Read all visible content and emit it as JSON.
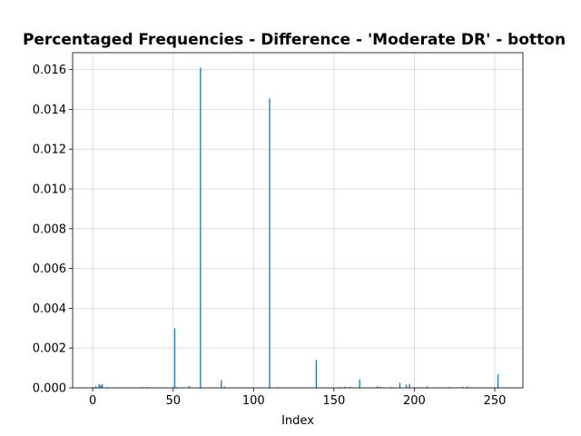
{
  "chart_data": {
    "type": "bar",
    "title": "Percentaged Frequencies - Difference - 'Moderate DR' - botton",
    "xlabel": "Index",
    "ylabel": "",
    "xlim": [
      -12.5,
      267.5
    ],
    "ylim": [
      0,
      0.01685
    ],
    "xticks": [
      0,
      50,
      100,
      150,
      200,
      250
    ],
    "yticks": [
      0.0,
      0.002,
      0.004,
      0.006,
      0.008,
      0.01,
      0.012,
      0.014,
      0.016
    ],
    "ytick_labels": [
      "0.000",
      "0.002",
      "0.004",
      "0.006",
      "0.008",
      "0.010",
      "0.012",
      "0.014",
      "0.016"
    ],
    "grid": true,
    "bar_color": "#1f77b4",
    "x": [
      0,
      2,
      4,
      5,
      6,
      9,
      31,
      34,
      51,
      52,
      60,
      67,
      80,
      82,
      110,
      115,
      139,
      154,
      157,
      160,
      166,
      177,
      179,
      186,
      191,
      195,
      197,
      208,
      222,
      230,
      233,
      252
    ],
    "values": [
      2e-05,
      8e-05,
      0.00018,
      0.00015,
      0.00019,
      4e-05,
      4e-05,
      4e-05,
      0.003,
      4e-05,
      0.0001,
      0.0161,
      0.00038,
      6e-05,
      0.01455,
      4e-05,
      0.0014,
      4e-05,
      6e-05,
      5e-05,
      0.00043,
      8e-05,
      5e-05,
      4e-05,
      0.00025,
      0.00016,
      0.0002,
      7e-05,
      4e-05,
      5e-05,
      7e-05,
      0.00068
    ]
  }
}
